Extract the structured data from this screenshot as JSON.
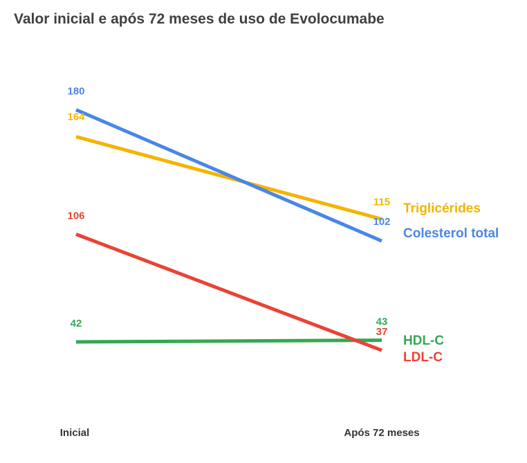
{
  "chart_data": {
    "type": "line",
    "title": "Valor inicial e após 72 meses de uso de Evolocumabe",
    "categories": [
      "Inicial",
      "Após 72 meses"
    ],
    "series": [
      {
        "name": "Triglicérides",
        "values": [
          164,
          115
        ],
        "color": "#f4b400"
      },
      {
        "name": "Colesterol total",
        "values": [
          180,
          102
        ],
        "color": "#4a86e8"
      },
      {
        "name": "HDL-C",
        "values": [
          42,
          43
        ],
        "color": "#34a853"
      },
      {
        "name": "LDL-C",
        "values": [
          106,
          37
        ],
        "color": "#ea4335"
      }
    ],
    "xlabel": "",
    "ylabel": "",
    "grid": false,
    "legend": "inline-right"
  }
}
